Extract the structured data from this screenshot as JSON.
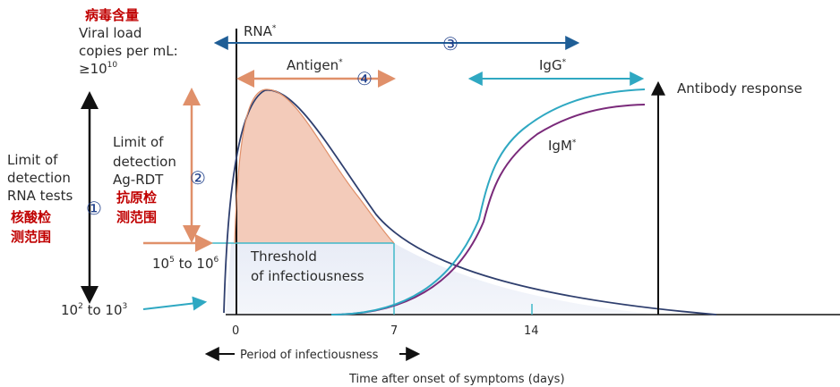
{
  "labels": {
    "viral_load_cn": "病毒含量",
    "viral_load_1": "Viral load",
    "viral_load_2": "copies per mL:",
    "viral_load_3_base": "≥10",
    "viral_load_3_exp": "10",
    "lod_rna_1": "Limit of",
    "lod_rna_2": "detection",
    "lod_rna_3": "RNA tests",
    "lod_rna_cn_1": "核酸检",
    "lod_rna_cn_2": "测范围",
    "lod_ag_1": "Limit of",
    "lod_ag_2": "detection",
    "lod_ag_3": "Ag-RDT",
    "lod_ag_cn_1": "抗原检",
    "lod_ag_cn_2": "测范围",
    "range_ag_base1": "10",
    "range_ag_exp1": "5",
    "range_ag_mid": " to 10",
    "range_ag_exp2": "6",
    "range_rna_base1": "10",
    "range_rna_exp1": "2",
    "range_rna_mid": " to 10",
    "range_rna_exp2": "3",
    "rna": "RNA",
    "rna_sup": "*",
    "antigen": "Antigen",
    "antigen_sup": "*",
    "igg": "IgG",
    "igg_sup": "*",
    "igm": "IgM",
    "igm_sup": "*",
    "antibody_response": "Antibody response",
    "threshold_1": "Threshold",
    "threshold_2": "of infectiousness",
    "period": "Period of infectiousness",
    "time_axis": "Time after onset of symptoms (days)",
    "num_1": "①",
    "num_2": "②",
    "num_3": "③",
    "num_4": "④"
  },
  "x_ticks": [
    "0",
    "7",
    "14"
  ],
  "colors": {
    "rna_arrow": "#1f5e96",
    "antigen": "#e0906a",
    "antigen_fill": "#f2c5b2",
    "igg": "#2fa8c2",
    "igm": "#7a2a7a",
    "curve_dark": "#2f3f6e",
    "threshold_line": "#3fb8c8",
    "black": "#111111"
  }
}
